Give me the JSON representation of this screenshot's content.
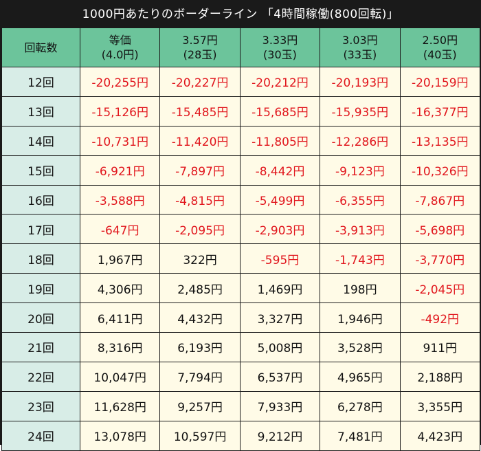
{
  "title": "1000円あたりのボーダーライン 「4時間稼働(800回転)」",
  "header": {
    "first": "回転数",
    "columns": [
      {
        "line1": "等価",
        "line2": "(4.0円)"
      },
      {
        "line1": "3.57円",
        "line2": "(28玉)"
      },
      {
        "line1": "3.33円",
        "line2": "(30玉)"
      },
      {
        "line1": "3.03円",
        "line2": "(33玉)"
      },
      {
        "line1": "2.50円",
        "line2": "(40玉)"
      }
    ]
  },
  "rows": [
    {
      "round": "12回",
      "values": [
        "-20,255円",
        "-20,227円",
        "-20,212円",
        "-20,193円",
        "-20,159円"
      ]
    },
    {
      "round": "13回",
      "values": [
        "-15,126円",
        "-15,485円",
        "-15,685円",
        "-15,935円",
        "-16,377円"
      ]
    },
    {
      "round": "14回",
      "values": [
        "-10,731円",
        "-11,420円",
        "-11,805円",
        "-12,286円",
        "-13,135円"
      ]
    },
    {
      "round": "15回",
      "values": [
        "-6,921円",
        "-7,897円",
        "-8,442円",
        "-9,123円",
        "-10,326円"
      ]
    },
    {
      "round": "16回",
      "values": [
        "-3,588円",
        "-4,815円",
        "-5,499円",
        "-6,355円",
        "-7,867円"
      ]
    },
    {
      "round": "17回",
      "values": [
        "-647円",
        "-2,095円",
        "-2,903円",
        "-3,913円",
        "-5,698円"
      ]
    },
    {
      "round": "18回",
      "values": [
        "1,967円",
        "322円",
        "-595円",
        "-1,743円",
        "-3,770円"
      ]
    },
    {
      "round": "19回",
      "values": [
        "4,306円",
        "2,485円",
        "1,469円",
        "198円",
        "-2,045円"
      ]
    },
    {
      "round": "20回",
      "values": [
        "6,411円",
        "4,432円",
        "3,327円",
        "1,946円",
        "-492円"
      ]
    },
    {
      "round": "21回",
      "values": [
        "8,316円",
        "6,193円",
        "5,008円",
        "3,528円",
        "911円"
      ]
    },
    {
      "round": "22回",
      "values": [
        "10,047円",
        "7,794円",
        "6,537円",
        "4,965円",
        "2,188円"
      ]
    },
    {
      "round": "23回",
      "values": [
        "11,628円",
        "9,257円",
        "7,933円",
        "6,278円",
        "3,355円"
      ]
    },
    {
      "round": "24回",
      "values": [
        "13,078円",
        "10,597円",
        "9,212円",
        "7,481円",
        "4,423円"
      ]
    }
  ],
  "colors": {
    "header_bg": "#6cc49b",
    "round_bg": "#d8ede7",
    "cell_bg": "#fffbe7",
    "negative_text": "#e1161d",
    "title_bg": "#1a1a1a"
  }
}
